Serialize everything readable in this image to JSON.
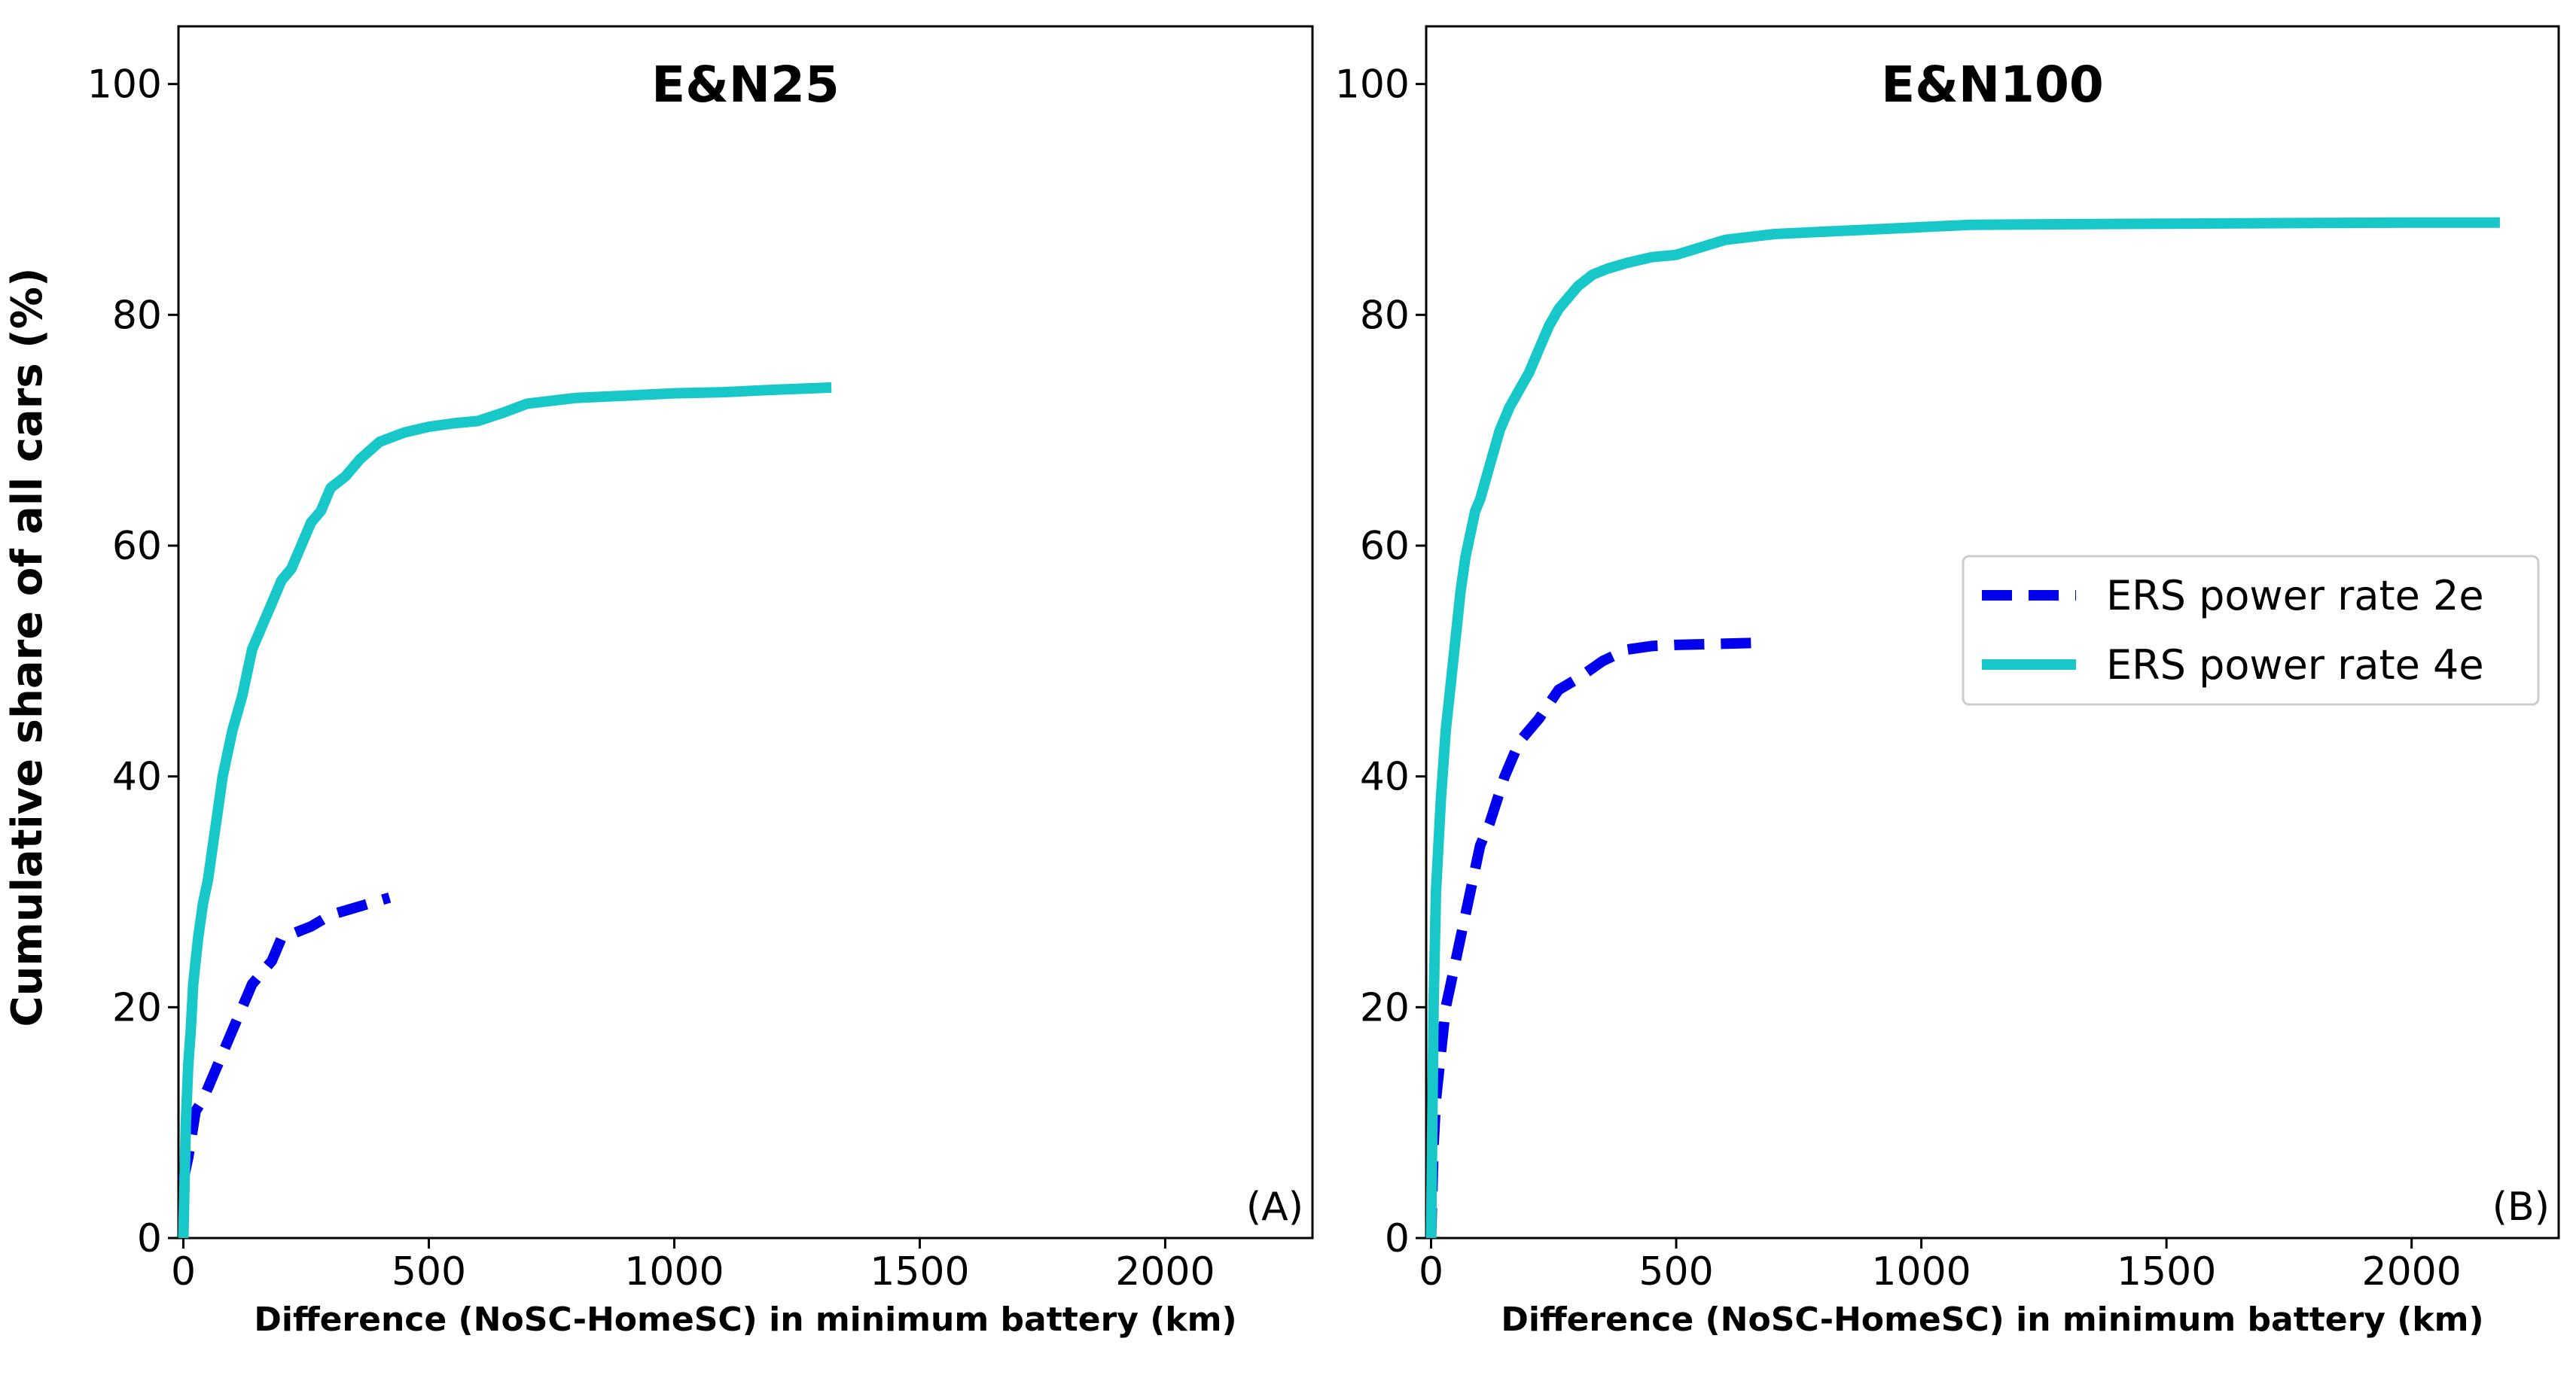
{
  "chart_data": [
    {
      "type": "line",
      "title": "E&N25",
      "panel_label": "(A)",
      "xlabel": "Difference (NoSC-HomeSC) in minimum battery (km)",
      "ylabel": "Cumulative share of all cars (%)",
      "xlim": [
        -10,
        2300
      ],
      "ylim": [
        0,
        105
      ],
      "xticks": [
        0,
        500,
        1000,
        1500,
        2000
      ],
      "yticks": [
        0,
        20,
        40,
        60,
        80,
        100
      ],
      "legend": null,
      "series": [
        {
          "name": "ERS power rate 2e",
          "color": "#0000ee",
          "style": "dashed",
          "x": [
            0,
            10,
            25,
            40,
            60,
            80,
            100,
            120,
            140,
            160,
            180,
            200,
            230,
            260,
            300,
            340,
            380,
            420
          ],
          "y": [
            5,
            7,
            11,
            12,
            14,
            16,
            18,
            20,
            22,
            23,
            24,
            26,
            26.5,
            27,
            28,
            28.5,
            29,
            29.5
          ]
        },
        {
          "name": "ERS power rate 4e",
          "color": "#18c8c8",
          "style": "solid",
          "x": [
            0,
            5,
            10,
            15,
            20,
            30,
            40,
            50,
            60,
            70,
            80,
            90,
            100,
            120,
            140,
            160,
            180,
            200,
            220,
            240,
            260,
            280,
            300,
            330,
            360,
            400,
            450,
            500,
            550,
            600,
            650,
            700,
            800,
            900,
            1000,
            1100,
            1200,
            1320
          ],
          "y": [
            0,
            10,
            15,
            18,
            22,
            26,
            29,
            31,
            34,
            37,
            40,
            42,
            44,
            47,
            51,
            53,
            55,
            57,
            58,
            60,
            62,
            63,
            65,
            66,
            67.5,
            69,
            69.8,
            70.3,
            70.6,
            70.8,
            71.5,
            72.3,
            72.8,
            73,
            73.2,
            73.3,
            73.5,
            73.7
          ]
        }
      ]
    },
    {
      "type": "line",
      "title": "E&N100",
      "panel_label": "(B)",
      "xlabel": "Difference (NoSC-HomeSC) in minimum battery (km)",
      "ylabel": "",
      "xlim": [
        -10,
        2300
      ],
      "ylim": [
        0,
        105
      ],
      "xticks": [
        0,
        500,
        1000,
        1500,
        2000
      ],
      "yticks": [
        0,
        20,
        40,
        60,
        80,
        100
      ],
      "legend": "center-right",
      "series": [
        {
          "name": "ERS power rate 2e",
          "color": "#0000ee",
          "style": "dashed",
          "x": [
            0,
            5,
            10,
            20,
            30,
            40,
            60,
            80,
            100,
            120,
            150,
            180,
            220,
            260,
            300,
            350,
            400,
            450,
            500,
            600,
            680
          ],
          "y": [
            0,
            8,
            12,
            16,
            20,
            22,
            26,
            30,
            34,
            36,
            40,
            43,
            45,
            47.5,
            48.5,
            50,
            51,
            51.3,
            51.4,
            51.5,
            51.6
          ]
        },
        {
          "name": "ERS power rate 4e",
          "color": "#18c8c8",
          "style": "solid",
          "x": [
            0,
            5,
            10,
            20,
            30,
            40,
            50,
            60,
            70,
            80,
            90,
            100,
            120,
            140,
            160,
            180,
            200,
            220,
            240,
            260,
            280,
            300,
            330,
            360,
            400,
            450,
            500,
            600,
            700,
            800,
            900,
            1000,
            1100,
            1500,
            2000,
            2180
          ],
          "y": [
            0,
            20,
            30,
            38,
            44,
            48,
            52,
            56,
            59,
            61,
            63,
            64,
            67,
            70,
            72,
            73.5,
            75,
            77,
            79,
            80.5,
            81.5,
            82.5,
            83.5,
            84,
            84.5,
            85,
            85.2,
            86.5,
            87,
            87.2,
            87.4,
            87.6,
            87.8,
            87.9,
            88,
            88
          ]
        }
      ]
    }
  ]
}
